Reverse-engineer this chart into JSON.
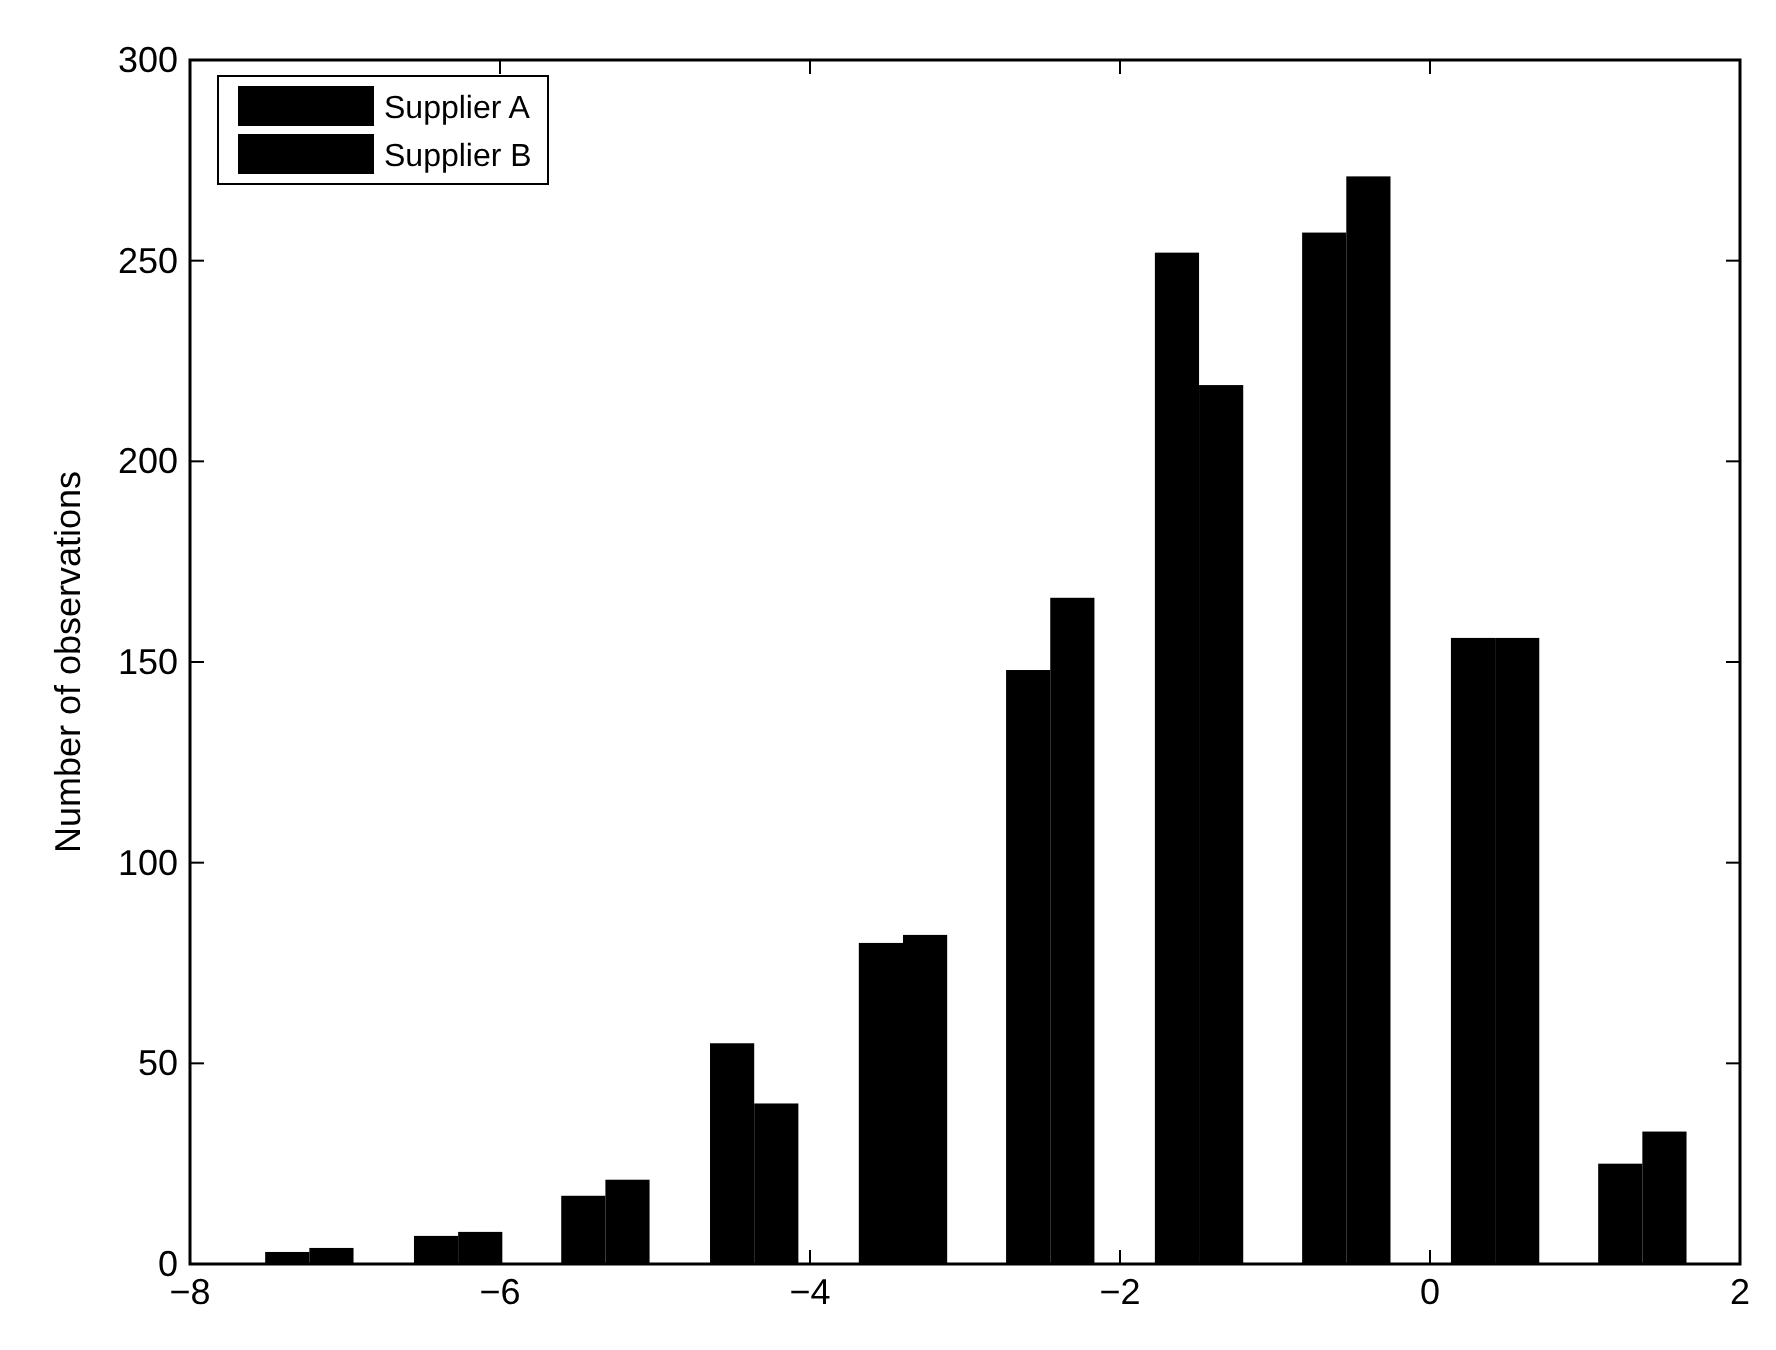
{
  "chart_data": {
    "type": "bar",
    "ylabel": "Number of observations",
    "x": [
      -7.23,
      -6.27,
      -5.32,
      -4.36,
      -3.4,
      -2.45,
      -1.49,
      -0.54,
      0.42,
      1.37
    ],
    "series": [
      {
        "name": "Supplier A",
        "color": "#000000",
        "values": [
          3,
          7,
          17,
          55,
          80,
          148,
          252,
          257,
          156,
          25
        ]
      },
      {
        "name": "Supplier B",
        "color": "#000000",
        "values": [
          4,
          8,
          21,
          40,
          82,
          166,
          219,
          271,
          156,
          33
        ]
      }
    ],
    "xlim": [
      -8,
      2
    ],
    "xticks": [
      -8,
      -6,
      -4,
      -2,
      0,
      2
    ],
    "ylim": [
      0,
      300
    ],
    "yticks": [
      0,
      50,
      100,
      150,
      200,
      250,
      300
    ],
    "grid": false,
    "legend": "top left"
  }
}
